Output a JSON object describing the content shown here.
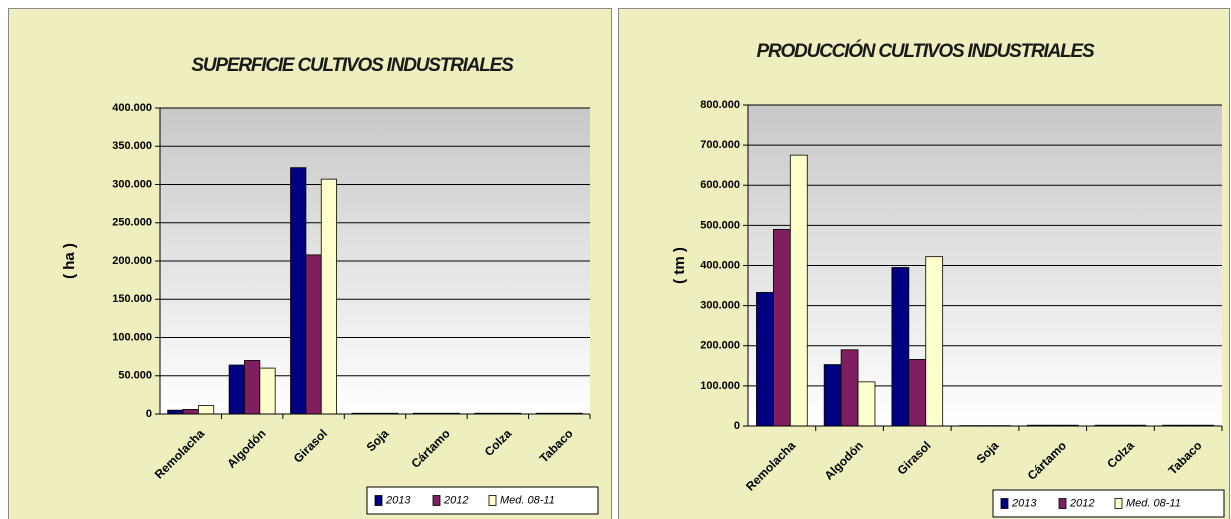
{
  "chart_data": [
    {
      "type": "bar",
      "title": "SUPERFICIE CULTIVOS INDUSTRIALES",
      "y_label": "( ha )",
      "categories": [
        "Remolacha",
        "Algodón",
        "Girasol",
        "Soja",
        "Cártamo",
        "Colza",
        "Tabaco"
      ],
      "series": [
        {
          "name": "2013",
          "color": "#000080",
          "values": [
            5000,
            64000,
            322000,
            1000,
            1000,
            1000,
            1000
          ]
        },
        {
          "name": "2012",
          "color": "#7f1f5f",
          "values": [
            6000,
            70000,
            208000,
            1000,
            1000,
            1000,
            1000
          ]
        },
        {
          "name": "Med. 08-11",
          "color": "#ffffcc",
          "values": [
            11000,
            60000,
            307000,
            1000,
            1000,
            1000,
            1000
          ]
        }
      ],
      "ylim": [
        0,
        400000
      ],
      "yticks": [
        0,
        {
          "value": 50000,
          "label": "50.000"
        },
        {
          "value": 100000,
          "label": "100.000"
        },
        {
          "value": 150000,
          "label": "150.000"
        },
        {
          "value": 200000,
          "label": "200.000"
        },
        {
          "value": 250000,
          "label": "250.000"
        },
        {
          "value": 300000,
          "label": "300.000"
        },
        {
          "value": 350000,
          "label": "350.000"
        },
        {
          "value": 400000,
          "label": "400.000"
        }
      ],
      "grid": true,
      "legend": "bottom-right"
    },
    {
      "type": "bar",
      "title": "PRODUCCIÓN CULTIVOS INDUSTRIALES",
      "y_label": "( tm )",
      "categories": [
        "Remolacha",
        "Algodón",
        "Girasol",
        "Soja",
        "Cártamo",
        "Colza",
        "Tabaco"
      ],
      "series": [
        {
          "name": "2013",
          "color": "#000080",
          "values": [
            333000,
            153000,
            395000,
            1000,
            2000,
            2000,
            2000
          ]
        },
        {
          "name": "2012",
          "color": "#7f1f5f",
          "values": [
            490000,
            190000,
            166000,
            1000,
            2000,
            2000,
            2000
          ]
        },
        {
          "name": "Med. 08-11",
          "color": "#ffffcc",
          "values": [
            675000,
            110000,
            422000,
            1000,
            2000,
            2000,
            2000
          ]
        }
      ],
      "ylim": [
        0,
        800000
      ],
      "yticks": [
        0,
        {
          "value": 100000,
          "label": "100.000"
        },
        {
          "value": 200000,
          "label": "200.000"
        },
        {
          "value": 300000,
          "label": "300.000"
        },
        {
          "value": 400000,
          "label": "400.000"
        },
        {
          "value": 500000,
          "label": "500.000"
        },
        {
          "value": 600000,
          "label": "600.000"
        },
        {
          "value": 700000,
          "label": "700.000"
        },
        {
          "value": 800000,
          "label": "800.000"
        }
      ],
      "grid": true,
      "legend": "bottom-right"
    }
  ]
}
